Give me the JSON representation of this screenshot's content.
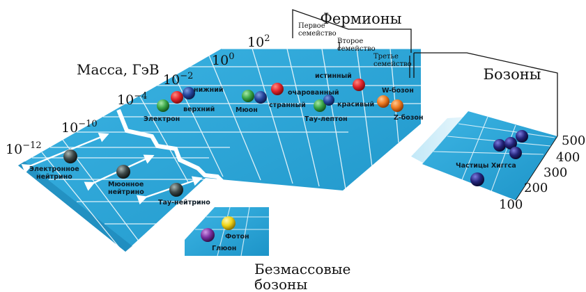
{
  "headings": {
    "fermions": "Фермионы",
    "bosons": "Бозоны",
    "massless": [
      "Безмассовые",
      "бозоны"
    ],
    "mass_axis": "Масса, ГэВ"
  },
  "families": {
    "first": [
      "Первое",
      "семейство"
    ],
    "second": [
      "Второе",
      "семейство"
    ],
    "third": [
      "Третье",
      "семейство"
    ]
  },
  "mass_scale": [
    {
      "base": "10",
      "exp": "−12"
    },
    {
      "base": "10",
      "exp": "−10"
    },
    {
      "base": "10",
      "exp": "−4"
    },
    {
      "base": "10",
      "exp": "−2"
    },
    {
      "base": "10",
      "exp": "0"
    },
    {
      "base": "10",
      "exp": "2"
    }
  ],
  "higgs_scale": [
    "500",
    "400",
    "300",
    "200",
    "100"
  ],
  "particles": {
    "electron": "Электрон",
    "down": "нижний",
    "up": "верхний",
    "muon": "Мюон",
    "charm": "очарованный",
    "strange": "странный",
    "top": "истинный",
    "bottom": "красивый",
    "tau": "Тау-лептон",
    "w_boson": "W-бозон",
    "z_boson": "Z-бозон",
    "nu_e": [
      "Электронное",
      "нейтрино"
    ],
    "nu_mu": [
      "Мюонное",
      "нейтрино"
    ],
    "nu_tau": "Тау-нейтрино",
    "photon": "Фотон",
    "gluon": "Глюон",
    "higgs": "Частицы Хиггса"
  },
  "colors": {
    "plane": "#2aa7d8",
    "plane_dark": "#1f8fc0",
    "grid": "#ffffff",
    "red": "#e0242a",
    "blue": "#23449a",
    "green": "#3aa647",
    "orange": "#ee7a20",
    "yellow": "#f0d417",
    "purple": "#7a2fa0",
    "gray": "#3c4747",
    "higgs": "#24247a"
  }
}
